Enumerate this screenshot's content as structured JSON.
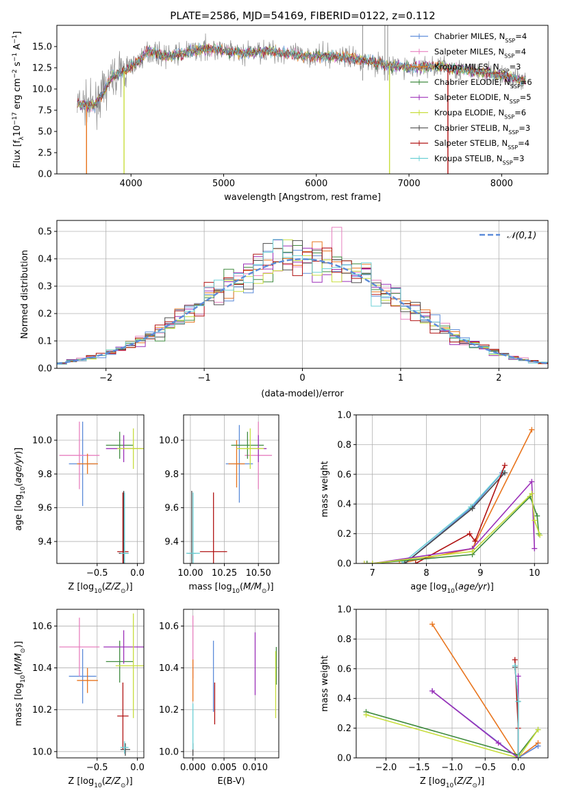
{
  "figure": {
    "title": "PLATE=2586, MJD=54169, FIBERID=0122, z=0.112"
  },
  "colors": {
    "Chabrier MILES": "#5b8bd9",
    "Salpeter MILES": "#e77fbf",
    "Kroupa MILES": "#e8741c",
    "Chabrier ELODIE": "#3f8a3f",
    "Salpeter ELODIE": "#9b2fb8",
    "Kroupa ELODIE": "#c7dd3b",
    "Chabrier STELIB": "#4a4a4a",
    "Salpeter STELIB": "#b01212",
    "Kroupa STELIB": "#6cd0d6",
    "data": "#8a8a8a",
    "normal": "#5b8bd9"
  },
  "chart_data": [
    {
      "id": "spectrum",
      "type": "line",
      "title": "PLATE=2586, MJD=54169, FIBERID=0122, z=0.112",
      "xlabel": "wavelength [Angstrom, rest frame]",
      "ylabel": "Flux [f_λ 10^-17 erg cm^-2 s^-1 A^-1]",
      "xlim": [
        3200,
        8500
      ],
      "ylim": [
        0,
        17.5
      ],
      "xticks": [
        4000,
        5000,
        6000,
        7000,
        8000
      ],
      "yticks": [
        0.0,
        2.5,
        5.0,
        7.5,
        10.0,
        12.5,
        15.0
      ],
      "grid": false,
      "legend_position": "right",
      "legend": [
        {
          "name": "Chabrier MILES",
          "nssp": "4"
        },
        {
          "name": "Salpeter MILES",
          "nssp": "4"
        },
        {
          "name": "Kroupa MILES",
          "nssp": "3"
        },
        {
          "name": "Chabrier ELODIE",
          "nssp": "6"
        },
        {
          "name": "Salpeter ELODIE",
          "nssp": "5"
        },
        {
          "name": "Kroupa ELODIE",
          "nssp": "6"
        },
        {
          "name": "Chabrier STELIB",
          "nssp": "3"
        },
        {
          "name": "Salpeter STELIB",
          "nssp": "4"
        },
        {
          "name": "Kroupa STELIB",
          "nssp": "3"
        }
      ],
      "continuum": [
        [
          3420,
          8.3
        ],
        [
          3600,
          8.0
        ],
        [
          3700,
          9.5
        ],
        [
          3800,
          11.5
        ],
        [
          3950,
          12.2
        ],
        [
          4050,
          13.0
        ],
        [
          4200,
          14.5
        ],
        [
          4400,
          13.8
        ],
        [
          4600,
          14.3
        ],
        [
          4800,
          14.8
        ],
        [
          5000,
          14.5
        ],
        [
          5200,
          14.2
        ],
        [
          5500,
          14.5
        ],
        [
          5800,
          14.0
        ],
        [
          6000,
          13.9
        ],
        [
          6300,
          13.8
        ],
        [
          6600,
          13.2
        ],
        [
          6800,
          12.7
        ],
        [
          7000,
          12.5
        ],
        [
          7300,
          12.7
        ],
        [
          7600,
          12.2
        ],
        [
          7900,
          11.8
        ],
        [
          8100,
          11.3
        ],
        [
          8260,
          11.0
        ]
      ],
      "spikes": [
        {
          "x": 3520,
          "y": 0.0,
          "color": "#e8741c"
        },
        {
          "x": 3925,
          "y": 0.0,
          "color": "#c7dd3b"
        },
        {
          "x": 6790,
          "y": 0.0,
          "color": "#c7dd3b"
        },
        {
          "x": 7420,
          "y": 0.0,
          "color": "#b01212"
        }
      ]
    },
    {
      "id": "residuals",
      "type": "step-histogram",
      "xlabel": "(data-model)/error",
      "ylabel": "Normed distribution",
      "xlim": [
        -2.5,
        2.5
      ],
      "ylim": [
        0,
        0.54
      ],
      "xticks": [
        -2,
        -1,
        0,
        1,
        2
      ],
      "yticks": [
        0.0,
        0.1,
        0.2,
        0.3,
        0.4,
        0.5
      ],
      "grid": true,
      "legend_position": "top-right",
      "legend": [
        {
          "name": "𝒩(0,1)"
        }
      ],
      "bin_width": 0.1,
      "max_point": {
        "x": 0.38,
        "y": 0.515
      }
    },
    {
      "id": "age_vs_Z",
      "type": "errorbar",
      "xlabel": "Z [log10(Z/Z⊙)]",
      "ylabel": "age  [log10(age/yr)]",
      "xlim": [
        -1.0,
        0.08
      ],
      "ylim": [
        9.27,
        10.15
      ],
      "xticks": [
        -0.5,
        0.0
      ],
      "yticks": [
        9.4,
        9.6,
        9.8,
        10.0
      ],
      "grid": true,
      "points": [
        {
          "series": "Chabrier MILES",
          "x": -0.68,
          "y": 9.86,
          "xerr": 0.17,
          "yerr": 0.25
        },
        {
          "series": "Salpeter MILES",
          "x": -0.72,
          "y": 9.91,
          "xerr": 0.25,
          "yerr": 0.2
        },
        {
          "series": "Kroupa MILES",
          "x": -0.62,
          "y": 9.86,
          "xerr": 0.13,
          "yerr": 0.06
        },
        {
          "series": "Chabrier ELODIE",
          "x": -0.22,
          "y": 9.97,
          "xerr": 0.17,
          "yerr": 0.08
        },
        {
          "series": "Salpeter ELODIE",
          "x": -0.17,
          "y": 9.95,
          "xerr": 0.22,
          "yerr": 0.08
        },
        {
          "series": "Kroupa ELODIE",
          "x": -0.05,
          "y": 9.95,
          "xerr": 0.2,
          "yerr": 0.12
        },
        {
          "series": "Chabrier STELIB",
          "x": -0.17,
          "y": 9.33,
          "xerr": 0.06,
          "yerr": 0.37
        },
        {
          "series": "Salpeter STELIB",
          "x": -0.18,
          "y": 9.34,
          "xerr": 0.07,
          "yerr": 0.35
        },
        {
          "series": "Kroupa STELIB",
          "x": -0.16,
          "y": 9.33,
          "xerr": 0.05,
          "yerr": 0.36
        }
      ]
    },
    {
      "id": "age_vs_mass",
      "type": "errorbar",
      "xlabel": "mass [log10(M/M⊙)]",
      "ylabel": "",
      "xlim": [
        9.95,
        10.65
      ],
      "ylim": [
        9.27,
        10.15
      ],
      "xticks": [
        10.0,
        10.25,
        10.5
      ],
      "yticks": [
        9.4,
        9.6,
        9.8,
        10.0
      ],
      "grid": true,
      "points": [
        {
          "series": "Chabrier MILES",
          "x": 10.36,
          "y": 9.86,
          "xerr": 0.1,
          "yerr": 0.23
        },
        {
          "series": "Salpeter MILES",
          "x": 10.5,
          "y": 9.91,
          "xerr": 0.1,
          "yerr": 0.2
        },
        {
          "series": "Kroupa MILES",
          "x": 10.34,
          "y": 9.86,
          "xerr": 0.06,
          "yerr": 0.14
        },
        {
          "series": "Chabrier ELODIE",
          "x": 10.42,
          "y": 9.97,
          "xerr": 0.12,
          "yerr": 0.08
        },
        {
          "series": "Salpeter ELODIE",
          "x": 10.5,
          "y": 9.95,
          "xerr": 0.06,
          "yerr": 0.08
        },
        {
          "series": "Kroupa ELODIE",
          "x": 10.44,
          "y": 9.95,
          "xerr": 0.1,
          "yerr": 0.12
        },
        {
          "series": "Chabrier STELIB",
          "x": 10.01,
          "y": 9.33,
          "xerr": 0.03,
          "yerr": 0.37
        },
        {
          "series": "Salpeter STELIB",
          "x": 10.17,
          "y": 9.34,
          "xerr": 0.1,
          "yerr": 0.35
        },
        {
          "series": "Kroupa STELIB",
          "x": 10.02,
          "y": 9.33,
          "xerr": 0.05,
          "yerr": 0.36
        }
      ]
    },
    {
      "id": "weight_vs_age",
      "type": "line",
      "xlabel": "age  [log10(age/yr)]",
      "ylabel": "mass weight",
      "xlim": [
        6.7,
        10.25
      ],
      "ylim": [
        0,
        1.0
      ],
      "xticks": [
        7,
        8,
        9,
        10
      ],
      "yticks": [
        0.0,
        0.2,
        0.4,
        0.6,
        0.8,
        1.0
      ],
      "grid": true,
      "series": [
        {
          "name": "Kroupa MILES",
          "points": [
            [
              6.9,
              0.0
            ],
            [
              7.5,
              0.0
            ],
            [
              8.85,
              0.1
            ],
            [
              9.95,
              0.9
            ]
          ]
        },
        {
          "name": "Salpeter MILES",
          "points": [
            [
              7.6,
              0.0
            ],
            [
              8.85,
              0.38
            ],
            [
              9.4,
              0.61
            ]
          ]
        },
        {
          "name": "Chabrier MILES",
          "points": [
            [
              7.6,
              0.0
            ],
            [
              8.85,
              0.38
            ],
            [
              9.4,
              0.61
            ]
          ]
        },
        {
          "name": "Kroupa STELIB",
          "points": [
            [
              7.55,
              0.0
            ],
            [
              8.82,
              0.38
            ],
            [
              9.42,
              0.62
            ]
          ]
        },
        {
          "name": "Chabrier STELIB",
          "points": [
            [
              7.6,
              0.0
            ],
            [
              8.85,
              0.37
            ],
            [
              9.45,
              0.61
            ]
          ]
        },
        {
          "name": "Salpeter STELIB",
          "points": [
            [
              7.8,
              0.0
            ],
            [
              8.8,
              0.2
            ],
            [
              8.9,
              0.15
            ],
            [
              9.45,
              0.66
            ]
          ]
        },
        {
          "name": "Salpeter ELODIE",
          "points": [
            [
              6.85,
              0.0
            ],
            [
              7.0,
              0.0
            ],
            [
              8.85,
              0.1
            ],
            [
              9.95,
              0.55
            ],
            [
              10.0,
              0.1
            ]
          ]
        },
        {
          "name": "Chabrier ELODIE",
          "points": [
            [
              6.9,
              0.0
            ],
            [
              7.0,
              0.0
            ],
            [
              8.85,
              0.06
            ],
            [
              9.92,
              0.45
            ],
            [
              10.05,
              0.32
            ],
            [
              10.08,
              0.2
            ]
          ]
        },
        {
          "name": "Kroupa ELODIE",
          "points": [
            [
              6.85,
              0.0
            ],
            [
              7.0,
              0.0
            ],
            [
              8.85,
              0.08
            ],
            [
              9.95,
              0.47
            ],
            [
              10.0,
              0.29
            ],
            [
              10.1,
              0.19
            ]
          ]
        }
      ]
    },
    {
      "id": "mass_vs_Z",
      "type": "errorbar",
      "xlabel": "Z [log10(Z/Z⊙)]",
      "ylabel": "mass [log10(M/M⊙)]",
      "xlim": [
        -1.0,
        0.08
      ],
      "ylim": [
        9.97,
        10.68
      ],
      "xticks": [
        -0.5,
        0.0
      ],
      "yticks": [
        10.0,
        10.2,
        10.4,
        10.6
      ],
      "grid": true,
      "points": [
        {
          "series": "Chabrier MILES",
          "x": -0.68,
          "y": 10.36,
          "xerr": 0.17,
          "yerr": 0.13
        },
        {
          "series": "Salpeter MILES",
          "x": -0.72,
          "y": 10.5,
          "xerr": 0.25,
          "yerr": 0.14
        },
        {
          "series": "Kroupa MILES",
          "x": -0.62,
          "y": 10.34,
          "xerr": 0.13,
          "yerr": 0.06
        },
        {
          "series": "Chabrier ELODIE",
          "x": -0.22,
          "y": 10.43,
          "xerr": 0.17,
          "yerr": 0.1
        },
        {
          "series": "Salpeter ELODIE",
          "x": -0.17,
          "y": 10.5,
          "xerr": 0.25,
          "yerr": 0.08
        },
        {
          "series": "Kroupa ELODIE",
          "x": -0.05,
          "y": 10.41,
          "xerr": 0.22,
          "yerr": 0.25
        },
        {
          "series": "Chabrier STELIB",
          "x": -0.15,
          "y": 10.01,
          "xerr": 0.06,
          "yerr": 0.03
        },
        {
          "series": "Salpeter STELIB",
          "x": -0.18,
          "y": 10.17,
          "xerr": 0.07,
          "yerr": 0.16
        },
        {
          "series": "Kroupa STELIB",
          "x": -0.16,
          "y": 10.02,
          "xerr": 0.05,
          "yerr": 0.03
        }
      ]
    },
    {
      "id": "mass_vs_ebv",
      "type": "errorbar",
      "xlabel": "E(B-V)",
      "ylabel": "",
      "xlim": [
        -0.0015,
        0.0138
      ],
      "ylim": [
        9.97,
        10.68
      ],
      "xticks": [
        0.0,
        0.005,
        0.01
      ],
      "xtick_labels": [
        "0.000",
        "0.005",
        "0.010"
      ],
      "yticks": [
        10.0,
        10.2,
        10.4,
        10.6
      ],
      "grid": true,
      "points": [
        {
          "series": "Chabrier MILES",
          "x": 0.0033,
          "y": 10.36,
          "yerr": 0.17
        },
        {
          "series": "Salpeter MILES",
          "x": 0.0,
          "y": 10.5,
          "yerr": 0.15
        },
        {
          "series": "Kroupa MILES",
          "x": 0.0,
          "y": 10.34,
          "yerr": 0.1
        },
        {
          "series": "Chabrier ELODIE",
          "x": 0.0134,
          "y": 10.41,
          "yerr": 0.09
        },
        {
          "series": "Salpeter ELODIE",
          "x": 0.01,
          "y": 10.42,
          "yerr": 0.15
        },
        {
          "series": "Kroupa ELODIE",
          "x": 0.0133,
          "y": 10.32,
          "yerr": 0.16
        },
        {
          "series": "Chabrier STELIB",
          "x": 0.0,
          "y": 10.01,
          "yerr": 0.03
        },
        {
          "series": "Salpeter STELIB",
          "x": 0.0035,
          "y": 10.23,
          "yerr": 0.1
        },
        {
          "series": "Kroupa STELIB",
          "x": 0.0,
          "y": 10.12,
          "yerr": 0.11
        }
      ]
    },
    {
      "id": "weight_vs_Z",
      "type": "line",
      "xlabel": "Z [log10(Z/Z⊙)]",
      "ylabel": "mass weight",
      "xlim": [
        -2.45,
        0.45
      ],
      "ylim": [
        0,
        1.0
      ],
      "xticks": [
        -2.0,
        -1.5,
        -1.0,
        -0.5,
        0.0
      ],
      "yticks": [
        0.0,
        0.2,
        0.4,
        0.6,
        0.8,
        1.0
      ],
      "grid": true,
      "series": [
        {
          "name": "Kroupa MILES",
          "points": [
            [
              -1.3,
              0.9
            ],
            [
              0.0,
              0.0
            ],
            [
              0.3,
              0.1
            ]
          ]
        },
        {
          "name": "Salpeter MILES",
          "points": [
            [
              -1.3,
              0.45
            ],
            [
              0.0,
              0.0
            ],
            [
              0.3,
              0.08
            ]
          ]
        },
        {
          "name": "Chabrier MILES",
          "points": [
            [
              -1.3,
              0.45
            ],
            [
              0.0,
              0.0
            ],
            [
              0.3,
              0.08
            ]
          ]
        },
        {
          "name": "Chabrier ELODIE",
          "points": [
            [
              -2.3,
              0.31
            ],
            [
              0.0,
              0.02
            ],
            [
              0.3,
              0.19
            ]
          ]
        },
        {
          "name": "Kroupa ELODIE",
          "points": [
            [
              -2.3,
              0.29
            ],
            [
              0.0,
              0.0
            ],
            [
              0.3,
              0.19
            ]
          ]
        },
        {
          "name": "Salpeter ELODIE",
          "points": [
            [
              -1.3,
              0.45
            ],
            [
              -0.3,
              0.1
            ],
            [
              0.0,
              0.0
            ],
            [
              0.0,
              0.55
            ]
          ]
        },
        {
          "name": "Chabrier STELIB",
          "points": [
            [
              -0.05,
              0.61
            ],
            [
              0.0,
              0.38
            ],
            [
              0.0,
              0.0
            ]
          ]
        },
        {
          "name": "Salpeter STELIB",
          "points": [
            [
              -0.05,
              0.66
            ],
            [
              0.0,
              0.2
            ],
            [
              0.0,
              0.0
            ]
          ]
        },
        {
          "name": "Kroupa STELIB",
          "points": [
            [
              -0.05,
              0.62
            ],
            [
              0.0,
              0.38
            ],
            [
              0.0,
              0.0
            ]
          ]
        }
      ]
    }
  ]
}
